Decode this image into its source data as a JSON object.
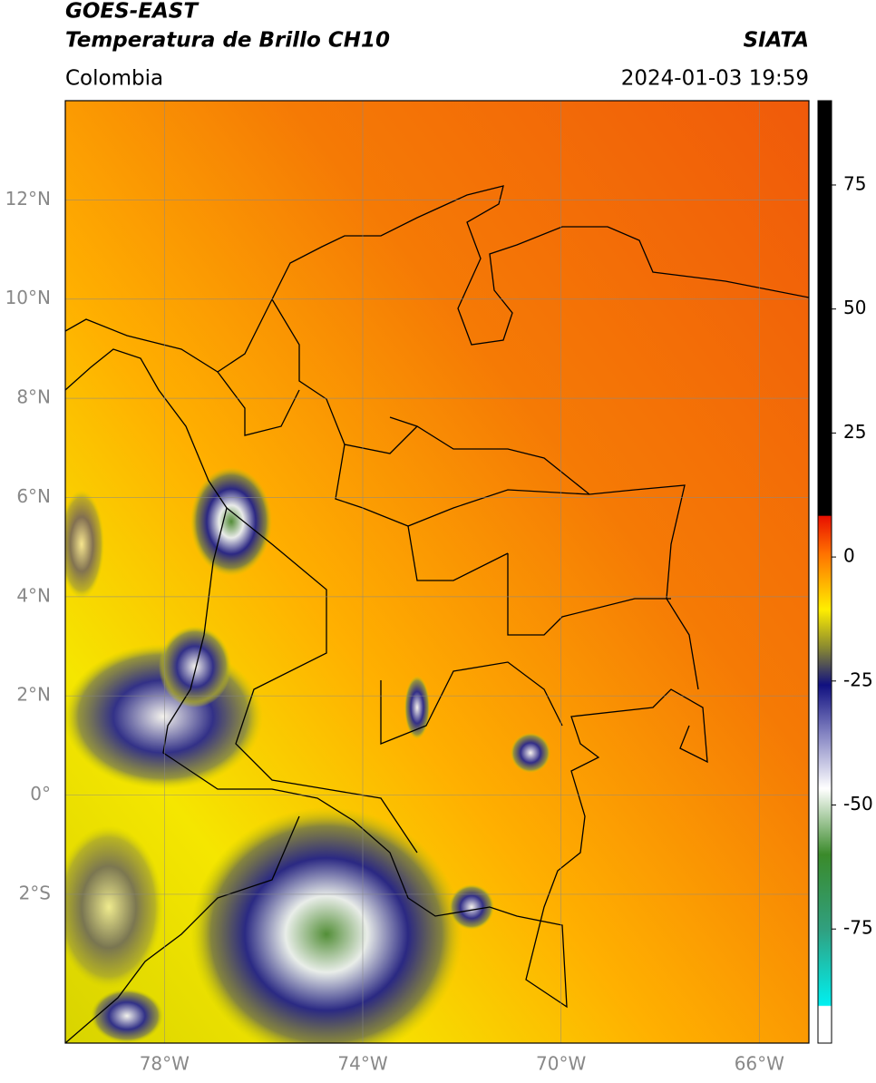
{
  "header": {
    "title": "GOES-EAST",
    "subtitle": "Temperatura de Brillo CH10",
    "region": "Colombia",
    "source": "SIATA",
    "timestamp": "2024-01-03 19:59"
  },
  "map": {
    "xlim": [
      -80,
      -65
    ],
    "ylim": [
      -5,
      14
    ],
    "xticks": [
      {
        "value": -78,
        "label": "78°W"
      },
      {
        "value": -74,
        "label": "74°W"
      },
      {
        "value": -70,
        "label": "70°W"
      },
      {
        "value": -66,
        "label": "66°W"
      }
    ],
    "yticks": [
      {
        "value": 12,
        "label": "12°N"
      },
      {
        "value": 10,
        "label": "10°N"
      },
      {
        "value": 8,
        "label": "8°N"
      },
      {
        "value": 6,
        "label": "6°N"
      },
      {
        "value": 4,
        "label": "4°N"
      },
      {
        "value": 2,
        "label": "2°N"
      },
      {
        "value": 0,
        "label": "0°"
      },
      {
        "value": -2,
        "label": "2°S"
      }
    ],
    "grid": true
  },
  "colorbar": {
    "lim": [
      -98,
      92
    ],
    "ticks": [
      75,
      50,
      25,
      0,
      -25,
      -50,
      -75
    ]
  }
}
